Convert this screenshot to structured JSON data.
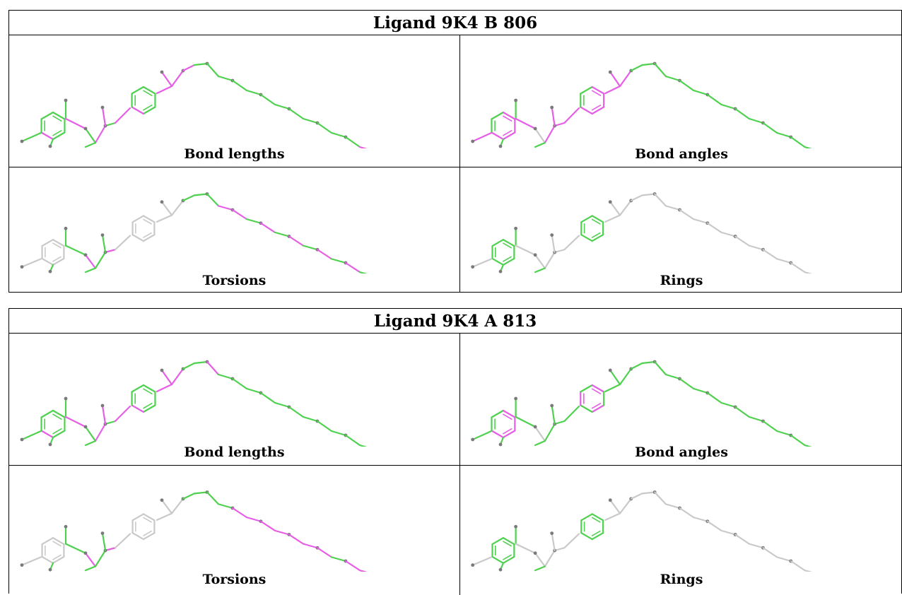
{
  "tables": [
    {
      "title": "Ligand 9K4 B 806",
      "panels": [
        {
          "label": "Bond lengths",
          "ring1_mode": "bl",
          "ring2_mode": "bl",
          "bonds": [
            "g",
            "m",
            "g",
            "m",
            "g",
            "m",
            "m",
            "m",
            "g",
            "g",
            "g",
            "g",
            "g",
            "g",
            "g",
            "g",
            "g",
            "g",
            "g",
            "g",
            "m",
            "m",
            "g"
          ]
        },
        {
          "label": "Bond angles",
          "ring1_mode": "ba",
          "ring2_mode": "ba",
          "bonds": [
            "m",
            "m",
            "y",
            "m",
            "m",
            "m",
            "m",
            "g",
            "g",
            "g",
            "g",
            "g",
            "g",
            "g",
            "g",
            "g",
            "g",
            "g",
            "g",
            "g",
            "g",
            "m",
            "m"
          ]
        },
        {
          "label": "Torsions",
          "ring1_mode": "grey",
          "ring2_mode": "grey",
          "bonds": [
            "y",
            "g",
            "m",
            "g",
            "m",
            "y",
            "y",
            "g",
            "g",
            "g",
            "m",
            "m",
            "g",
            "m",
            "g",
            "m",
            "g",
            "m",
            "g",
            "m",
            "g",
            "g",
            "y"
          ]
        },
        {
          "label": "Rings",
          "ring1_mode": "green",
          "ring2_mode": "green",
          "bonds": [
            "y",
            "y",
            "y",
            "y",
            "y",
            "y",
            "y",
            "y",
            "y",
            "y",
            "y",
            "y",
            "y",
            "y",
            "y",
            "y",
            "y",
            "y",
            "y",
            "y",
            "y",
            "y",
            "y"
          ]
        }
      ]
    },
    {
      "title": "Ligand 9K4 A 813",
      "panels": [
        {
          "label": "Bond lengths",
          "ring1_mode": "bl",
          "ring2_mode": "bl",
          "bonds": [
            "g",
            "m",
            "g",
            "m",
            "g",
            "m",
            "m",
            "g",
            "g",
            "m",
            "g",
            "g",
            "g",
            "g",
            "g",
            "g",
            "g",
            "g",
            "g",
            "g",
            "g",
            "g",
            "g"
          ]
        },
        {
          "label": "Bond angles",
          "ring1_mode": "ba",
          "ring2_mode": "bl2",
          "bonds": [
            "g",
            "g",
            "y",
            "g",
            "g",
            "g",
            "g",
            "g",
            "g",
            "g",
            "g",
            "g",
            "g",
            "g",
            "g",
            "g",
            "g",
            "g",
            "g",
            "g",
            "g",
            "g",
            "g"
          ]
        },
        {
          "label": "Torsions",
          "ring1_mode": "grey",
          "ring2_mode": "grey",
          "bonds": [
            "y",
            "g",
            "m",
            "g",
            "m",
            "y",
            "y",
            "g",
            "g",
            "g",
            "g",
            "m",
            "m",
            "m",
            "m",
            "m",
            "m",
            "m",
            "g",
            "m",
            "m",
            "y",
            "y"
          ]
        },
        {
          "label": "Rings",
          "ring1_mode": "green",
          "ring2_mode": "green",
          "bonds": [
            "y",
            "y",
            "y",
            "y",
            "y",
            "y",
            "y",
            "y",
            "y",
            "y",
            "y",
            "y",
            "y",
            "y",
            "y",
            "y",
            "y",
            "y",
            "y",
            "y",
            "y",
            "y",
            "y"
          ]
        }
      ]
    }
  ],
  "colors": {
    "green": "#4fd14f",
    "magenta": "#e65ee6",
    "grey": "#c9c9c9",
    "atom": "#7a7a7a",
    "border": "#000000"
  }
}
